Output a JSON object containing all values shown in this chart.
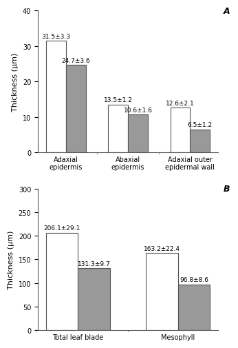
{
  "panel_A": {
    "categories": [
      "Adaxial\nepidermis",
      "Abaxial\nepidermis",
      "Adaxial outer\nepidermal wall"
    ],
    "sun_values": [
      31.5,
      13.5,
      12.6
    ],
    "shade_values": [
      24.7,
      10.6,
      6.5
    ],
    "sun_labels": [
      "31.5±3.3",
      "13.5±1.2",
      "12.6±2.1"
    ],
    "shade_labels": [
      "24.7±3.6",
      "10.6±1.6",
      "6.5±1.2"
    ],
    "ylabel": "Thickness (μm)",
    "ylim": [
      0,
      40
    ],
    "yticks": [
      0,
      10,
      20,
      30,
      40
    ],
    "panel_label": "A"
  },
  "panel_B": {
    "categories": [
      "Total leaf blade",
      "Mesophyll"
    ],
    "sun_values": [
      206.1,
      163.2
    ],
    "shade_values": [
      131.3,
      96.8
    ],
    "sun_labels": [
      "206.1±29.1",
      "163.2±22.4"
    ],
    "shade_labels": [
      "131.3±9.7",
      "96.8±8.6"
    ],
    "ylabel": "Thickness (μm)",
    "ylim": [
      0,
      300
    ],
    "yticks": [
      0,
      50,
      100,
      150,
      200,
      250,
      300
    ],
    "panel_label": "B"
  },
  "bar_width": 0.32,
  "sun_color": "#ffffff",
  "shade_color": "#999999",
  "edge_color": "#555555",
  "label_fontsize": 6.5,
  "tick_fontsize": 7,
  "axis_label_fontsize": 8,
  "panel_label_fontsize": 9
}
